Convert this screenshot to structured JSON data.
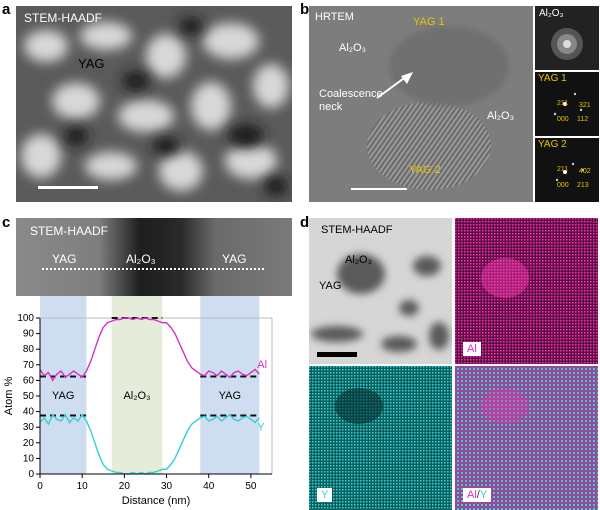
{
  "panels": {
    "a": {
      "letter": "a",
      "mode": "STEM-HAADF",
      "label": "YAG"
    },
    "b": {
      "letter": "b",
      "mode": "HRTEM",
      "yag1": "YAG 1",
      "yag2": "YAG 2",
      "al2o3": "Al₂O₃",
      "neck": "Coalescence\nneck",
      "fft": [
        {
          "title": "Al₂O₃",
          "idx": []
        },
        {
          "title": "YAG 1",
          "idx": [
            "211",
            "321",
            "000",
            "112"
          ]
        },
        {
          "title": "YAG 2",
          "idx": [
            "211",
            "402",
            "000",
            "213"
          ]
        }
      ]
    },
    "c": {
      "letter": "c",
      "mode": "STEM-HAADF",
      "yag_left": "YAG",
      "al2o3": "Al₂O₃",
      "yag_right": "YAG"
    },
    "d": {
      "letter": "d",
      "mode": "STEM-HAADF",
      "al2o3": "Al₂O₃",
      "yag": "YAG",
      "map_al": "Al",
      "map_y": "Y",
      "map_overlay_al": "Al",
      "map_overlay_sep": "/",
      "map_overlay_y": "Y"
    }
  },
  "chart_data": {
    "type": "line",
    "xlabel": "Distance (nm)",
    "ylabel": "Atom %",
    "xlim": [
      0,
      55
    ],
    "ylim": [
      0,
      100
    ],
    "xticks": [
      0,
      10,
      20,
      30,
      40,
      50
    ],
    "yticks": [
      0,
      10,
      20,
      30,
      40,
      50,
      60,
      70,
      80,
      90,
      100
    ],
    "regions": [
      {
        "label": "YAG",
        "x": [
          0,
          11
        ],
        "color": "#c9d9ee"
      },
      {
        "label": "Al₂O₃",
        "x": [
          17,
          29
        ],
        "color": "#e3ead6"
      },
      {
        "label": "YAG",
        "x": [
          38,
          52
        ],
        "color": "#c9d9ee"
      }
    ],
    "reference_lines": [
      {
        "y": 62.5,
        "x": [
          0,
          11
        ]
      },
      {
        "y": 37.5,
        "x": [
          0,
          11
        ]
      },
      {
        "y": 100,
        "x": [
          17,
          29
        ]
      },
      {
        "y": 62.5,
        "x": [
          38,
          52
        ]
      },
      {
        "y": 37.5,
        "x": [
          38,
          52
        ]
      }
    ],
    "series": [
      {
        "name": "Al",
        "color": "#d62fc6",
        "x": [
          0,
          1,
          2,
          3,
          4,
          5,
          6,
          7,
          8,
          9,
          10,
          11,
          12,
          13,
          14,
          15,
          16,
          17,
          18,
          19,
          20,
          21,
          22,
          23,
          24,
          25,
          26,
          27,
          28,
          29,
          30,
          31,
          32,
          33,
          34,
          35,
          36,
          37,
          38,
          39,
          40,
          41,
          42,
          43,
          44,
          45,
          46,
          47,
          48,
          49,
          50,
          51,
          52
        ],
        "y": [
          67,
          63,
          65,
          60,
          64,
          66,
          62,
          64,
          66,
          64,
          62,
          66,
          72,
          80,
          88,
          94,
          97,
          98,
          99,
          99,
          100,
          100,
          99,
          100,
          99,
          100,
          99,
          99,
          98,
          97,
          97,
          94,
          90,
          84,
          78,
          72,
          68,
          66,
          64,
          63,
          66,
          65,
          63,
          66,
          64,
          62,
          65,
          66,
          64,
          63,
          65,
          67,
          64
        ]
      },
      {
        "name": "Y",
        "color": "#2fd1d4",
        "x": [
          0,
          1,
          2,
          3,
          4,
          5,
          6,
          7,
          8,
          9,
          10,
          11,
          12,
          13,
          14,
          15,
          16,
          17,
          18,
          19,
          20,
          21,
          22,
          23,
          24,
          25,
          26,
          27,
          28,
          29,
          30,
          31,
          32,
          33,
          34,
          35,
          36,
          37,
          38,
          39,
          40,
          41,
          42,
          43,
          44,
          45,
          46,
          47,
          48,
          49,
          50,
          51,
          52
        ],
        "y": [
          33,
          36,
          32,
          38,
          35,
          34,
          38,
          33,
          36,
          34,
          38,
          34,
          28,
          20,
          12,
          6,
          3,
          2,
          1,
          1,
          0,
          0,
          1,
          0,
          1,
          0,
          1,
          1,
          2,
          3,
          3,
          6,
          10,
          16,
          22,
          28,
          32,
          34,
          36,
          37,
          34,
          35,
          37,
          34,
          36,
          38,
          35,
          34,
          36,
          37,
          35,
          33,
          36
        ]
      }
    ],
    "series_labels": [
      {
        "text": "Al",
        "x": 51.5,
        "y": 68
      },
      {
        "text": "Y",
        "x": 51.5,
        "y": 28
      }
    ]
  }
}
